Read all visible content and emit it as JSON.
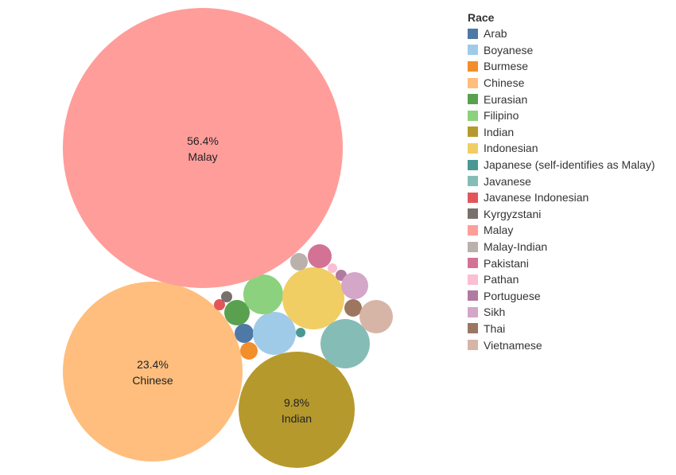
{
  "chart_data": {
    "type": "bubble",
    "legend_title": "Race",
    "legend_position": "right",
    "series": [
      {
        "name": "Arab",
        "color": "#4e79a7"
      },
      {
        "name": "Boyanese",
        "color": "#a0cbe8"
      },
      {
        "name": "Burmese",
        "color": "#f28e2b"
      },
      {
        "name": "Chinese",
        "color": "#ffbe7d",
        "value_label": "23.4%"
      },
      {
        "name": "Eurasian",
        "color": "#59a14f"
      },
      {
        "name": "Filipino",
        "color": "#8cd17d"
      },
      {
        "name": "Indian",
        "color": "#b6992d",
        "value_label": "9.8%"
      },
      {
        "name": "Indonesian",
        "color": "#f1ce63"
      },
      {
        "name": "Japanese (self-identifies as Malay)",
        "color": "#499894"
      },
      {
        "name": "Javanese",
        "color": "#86bcb6"
      },
      {
        "name": "Javanese Indonesian",
        "color": "#e15759"
      },
      {
        "name": "Kyrgyzstani",
        "color": "#79706e"
      },
      {
        "name": "Malay",
        "color": "#ff9d9a",
        "value_label": "56.4%"
      },
      {
        "name": "Malay-Indian",
        "color": "#bab0ac"
      },
      {
        "name": "Pakistani",
        "color": "#d37295"
      },
      {
        "name": "Pathan",
        "color": "#fabfd2"
      },
      {
        "name": "Portuguese",
        "color": "#b07aa1"
      },
      {
        "name": "Sikh",
        "color": "#d4a6c8"
      },
      {
        "name": "Thai",
        "color": "#9d7660"
      },
      {
        "name": "Vietnamese",
        "color": "#d7b5a6"
      }
    ]
  }
}
